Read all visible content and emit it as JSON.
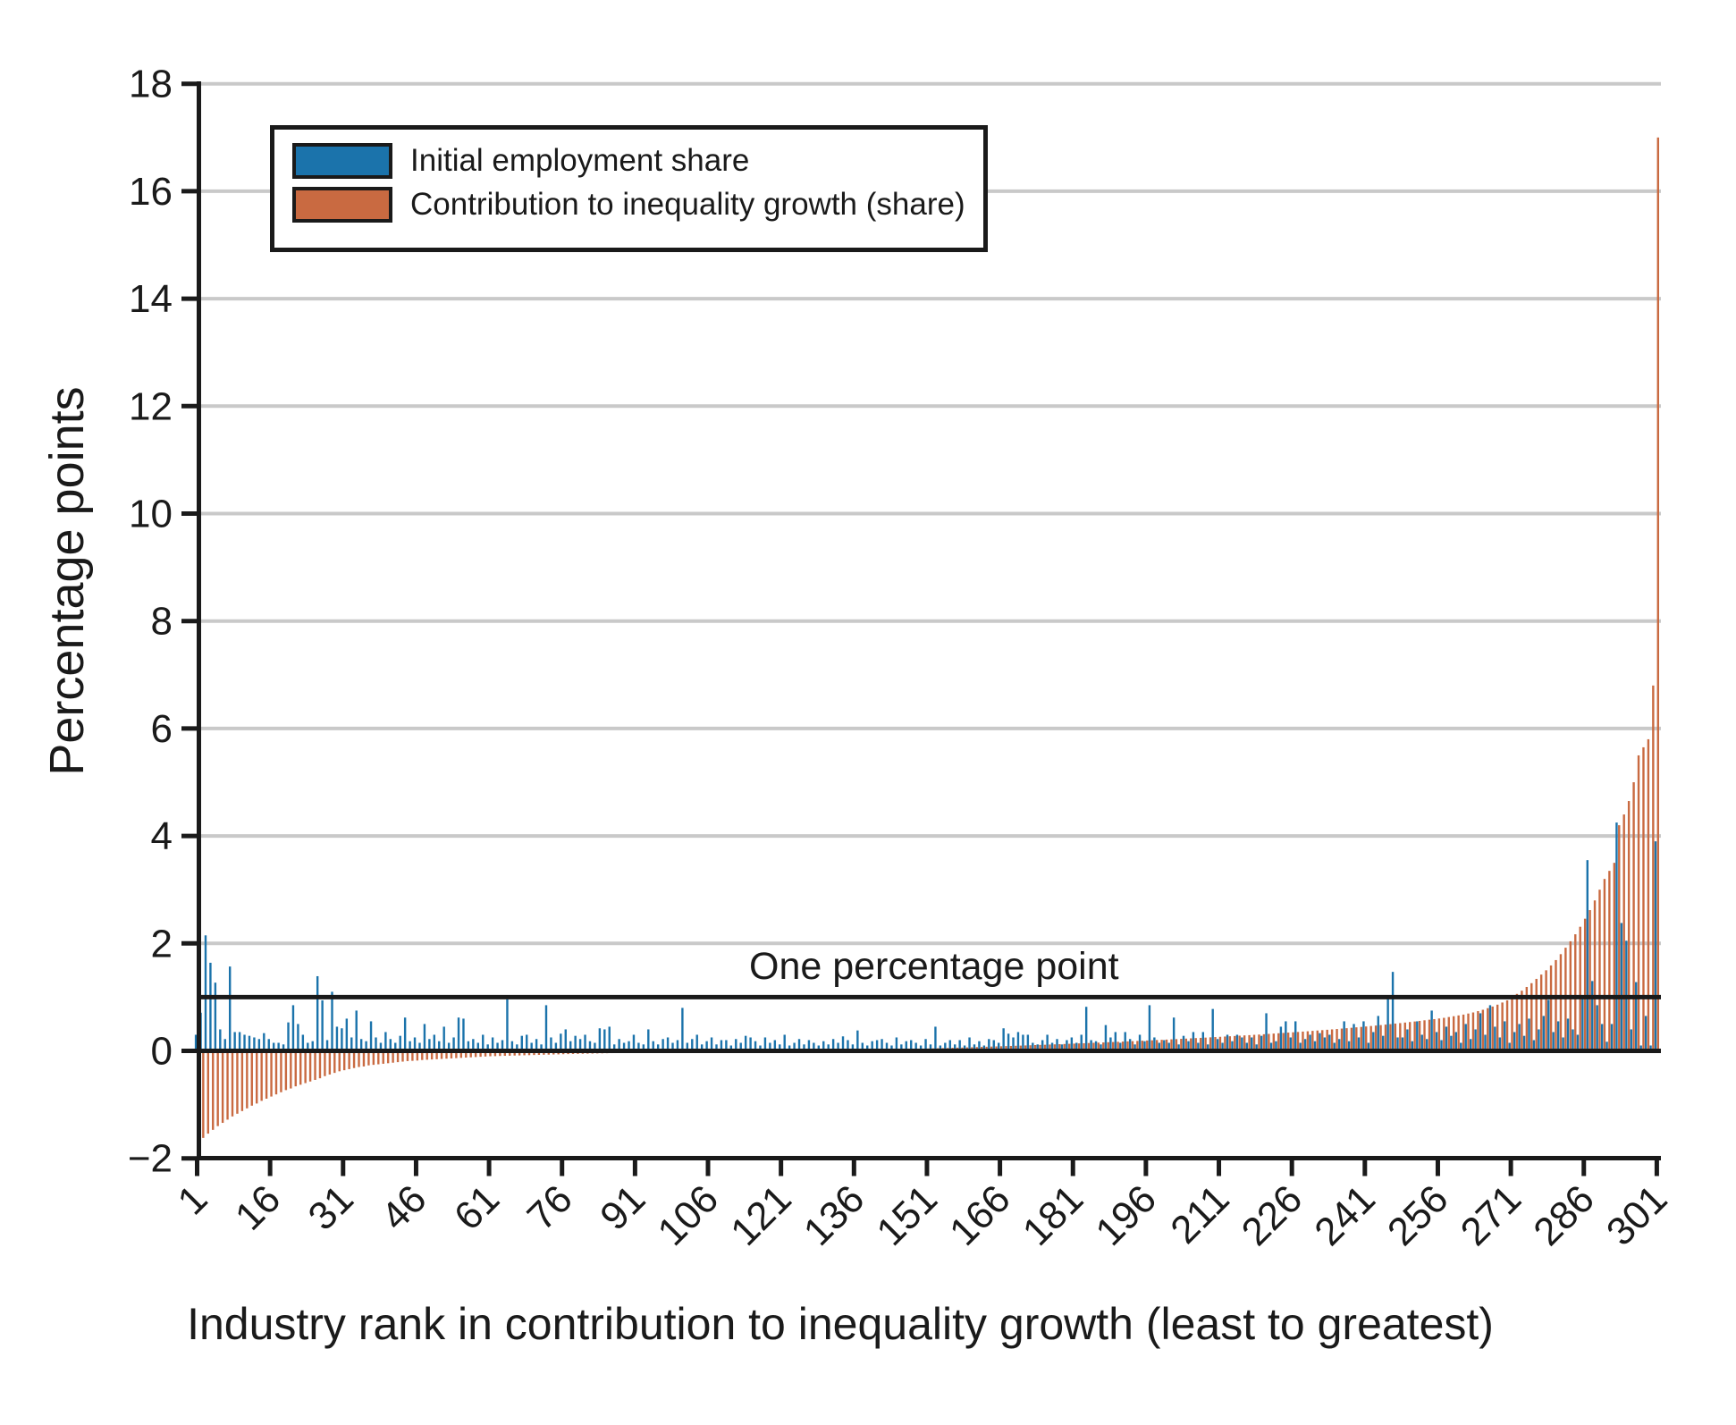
{
  "figure": {
    "ylabel": "Percentage points",
    "xlabel": "Industry rank in contribution to inequality growth (least to greatest)",
    "annotation": "One percentage point",
    "colors": {
      "blue": "#1b73ab",
      "orange": "#c96a41",
      "grid": "#c9c9c9",
      "axis": "#1a1a1a",
      "background": "#ffffff"
    },
    "legend": [
      {
        "label": "Initial employment share",
        "color": "#1b73ab"
      },
      {
        "label": "Contribution to inequality growth (share)",
        "color": "#c96a41"
      }
    ]
  },
  "chart_data": {
    "type": "bar",
    "title": "",
    "xlabel": "Industry rank in contribution to inequality growth (least to greatest)",
    "ylabel": "Percentage points",
    "x_ticks": [
      1,
      16,
      31,
      46,
      61,
      76,
      91,
      106,
      121,
      136,
      151,
      166,
      181,
      196,
      211,
      226,
      241,
      256,
      271,
      286,
      301
    ],
    "y_ticks": [
      -2,
      0,
      2,
      4,
      6,
      8,
      10,
      12,
      14,
      16,
      18
    ],
    "xlim": [
      1,
      301
    ],
    "ylim": [
      -2,
      18
    ],
    "grid": "horizontal gridlines at y = 2,4,6,8,10,12,14,16,18",
    "legend_position": "top-left inside plot",
    "reference_line": {
      "y": 1,
      "label": "One percentage point"
    },
    "x_note": "one pair of bars per industry, ranks 1 to 301 sorted by contribution to inequality growth",
    "series": [
      {
        "name": "Initial employment share",
        "color": "#1b73ab",
        "values": [
          0.3,
          0.71,
          2.15,
          1.64,
          1.27,
          0.4,
          0.22,
          1.57,
          0.35,
          0.35,
          0.3,
          0.28,
          0.25,
          0.22,
          0.33,
          0.22,
          0.15,
          0.15,
          0.12,
          0.53,
          0.85,
          0.5,
          0.3,
          0.15,
          0.18,
          1.39,
          0.94,
          0.2,
          1.1,
          0.45,
          0.42,
          0.6,
          0.25,
          0.75,
          0.22,
          0.18,
          0.55,
          0.25,
          0.15,
          0.35,
          0.22,
          0.15,
          0.28,
          0.62,
          0.18,
          0.25,
          0.15,
          0.5,
          0.22,
          0.3,
          0.18,
          0.45,
          0.15,
          0.25,
          0.62,
          0.6,
          0.18,
          0.22,
          0.15,
          0.3,
          0.12,
          0.25,
          0.15,
          0.2,
          0.96,
          0.18,
          0.12,
          0.28,
          0.3,
          0.15,
          0.22,
          0.12,
          0.85,
          0.25,
          0.15,
          0.32,
          0.4,
          0.18,
          0.28,
          0.22,
          0.3,
          0.18,
          0.15,
          0.42,
          0.4,
          0.45,
          0.12,
          0.22,
          0.15,
          0.18,
          0.3,
          0.15,
          0.12,
          0.4,
          0.18,
          0.12,
          0.22,
          0.25,
          0.15,
          0.2,
          0.8,
          0.15,
          0.22,
          0.3,
          0.12,
          0.18,
          0.25,
          0.12,
          0.2,
          0.2,
          0.1,
          0.22,
          0.15,
          0.28,
          0.25,
          0.18,
          0.1,
          0.25,
          0.15,
          0.2,
          0.12,
          0.3,
          0.1,
          0.15,
          0.22,
          0.12,
          0.2,
          0.15,
          0.1,
          0.18,
          0.12,
          0.22,
          0.15,
          0.27,
          0.2,
          0.12,
          0.38,
          0.15,
          0.1,
          0.18,
          0.2,
          0.22,
          0.15,
          0.1,
          0.25,
          0.12,
          0.18,
          0.2,
          0.15,
          0.1,
          0.22,
          0.12,
          0.45,
          0.1,
          0.15,
          0.2,
          0.12,
          0.2,
          0.1,
          0.25,
          0.12,
          0.18,
          0.1,
          0.22,
          0.2,
          0.15,
          0.42,
          0.32,
          0.25,
          0.35,
          0.3,
          0.3,
          0.15,
          0.12,
          0.2,
          0.3,
          0.15,
          0.22,
          0.12,
          0.2,
          0.25,
          0.15,
          0.3,
          0.82,
          0.2,
          0.18,
          0.12,
          0.48,
          0.25,
          0.35,
          0.15,
          0.35,
          0.22,
          0.12,
          0.3,
          0.18,
          0.85,
          0.25,
          0.15,
          0.2,
          0.15,
          0.62,
          0.12,
          0.28,
          0.18,
          0.35,
          0.15,
          0.35,
          0.12,
          0.78,
          0.22,
          0.15,
          0.3,
          0.18,
          0.3,
          0.25,
          0.15,
          0.25,
          0.12,
          0.28,
          0.7,
          0.15,
          0.18,
          0.45,
          0.55,
          0.25,
          0.55,
          0.15,
          0.22,
          0.3,
          0.18,
          0.33,
          0.25,
          0.3,
          0.15,
          0.22,
          0.55,
          0.18,
          0.5,
          0.25,
          0.55,
          0.15,
          0.35,
          0.65,
          0.28,
          1.0,
          1.47,
          0.25,
          0.25,
          0.4,
          0.18,
          0.55,
          0.3,
          0.22,
          0.75,
          0.35,
          0.2,
          0.45,
          0.28,
          0.35,
          0.15,
          0.5,
          0.22,
          0.4,
          0.7,
          0.3,
          0.85,
          0.45,
          0.25,
          0.55,
          0.15,
          0.35,
          0.5,
          0.28,
          0.6,
          0.2,
          0.4,
          0.65,
          0.95,
          0.35,
          0.55,
          0.25,
          0.6,
          0.4,
          0.3,
          1.0,
          3.55,
          1.3,
          0.85,
          0.5,
          0.17,
          0.5,
          4.25,
          2.38,
          2.05,
          0.4,
          1.28,
          0.1,
          0.65,
          0.1,
          3.9
        ]
      },
      {
        "name": "Contribution to inequality growth (share)",
        "color": "#c96a41",
        "values": [
          -1.7,
          -1.62,
          -1.54,
          -1.47,
          -1.4,
          -1.34,
          -1.28,
          -1.22,
          -1.17,
          -1.12,
          -1.07,
          -1.02,
          -0.98,
          -0.93,
          -0.89,
          -0.85,
          -0.81,
          -0.77,
          -0.73,
          -0.7,
          -0.66,
          -0.63,
          -0.6,
          -0.57,
          -0.54,
          -0.51,
          -0.47,
          -0.44,
          -0.41,
          -0.38,
          -0.36,
          -0.34,
          -0.32,
          -0.3,
          -0.29,
          -0.27,
          -0.26,
          -0.25,
          -0.24,
          -0.23,
          -0.22,
          -0.21,
          -0.2,
          -0.19,
          -0.185,
          -0.18,
          -0.17,
          -0.165,
          -0.16,
          -0.155,
          -0.15,
          -0.145,
          -0.14,
          -0.135,
          -0.13,
          -0.125,
          -0.12,
          -0.115,
          -0.11,
          -0.105,
          -0.1,
          -0.098,
          -0.095,
          -0.092,
          -0.09,
          -0.087,
          -0.085,
          -0.082,
          -0.08,
          -0.077,
          -0.075,
          -0.072,
          -0.07,
          -0.067,
          -0.065,
          -0.062,
          -0.06,
          -0.058,
          -0.056,
          -0.054,
          -0.052,
          -0.05,
          -0.048,
          -0.046,
          -0.044,
          -0.042,
          -0.04,
          -0.038,
          -0.036,
          -0.034,
          -0.032,
          -0.03,
          -0.028,
          -0.026,
          -0.025,
          -0.023,
          -0.022,
          -0.02,
          -0.019,
          -0.018,
          -0.016,
          -0.015,
          -0.014,
          -0.013,
          -0.012,
          -0.011,
          -0.01,
          -0.009,
          -0.008,
          -0.007,
          -0.006,
          -0.005,
          -0.005,
          -0.004,
          -0.003,
          -0.003,
          -0.002,
          -0.002,
          -0.001,
          -0.001,
          0,
          0,
          0.001,
          0.001,
          0.002,
          0.003,
          0.004,
          0.005,
          0.006,
          0.007,
          0.008,
          0.009,
          0.01,
          0.012,
          0.013,
          0.015,
          0.016,
          0.018,
          0.02,
          0.022,
          0.024,
          0.026,
          0.028,
          0.03,
          0.032,
          0.034,
          0.036,
          0.038,
          0.04,
          0.042,
          0.044,
          0.047,
          0.049,
          0.052,
          0.054,
          0.057,
          0.06,
          0.062,
          0.065,
          0.068,
          0.071,
          0.074,
          0.077,
          0.08,
          0.083,
          0.086,
          0.089,
          0.092,
          0.095,
          0.098,
          0.101,
          0.104,
          0.108,
          0.111,
          0.114,
          0.118,
          0.121,
          0.125,
          0.128,
          0.132,
          0.135,
          0.139,
          0.142,
          0.146,
          0.15,
          0.153,
          0.157,
          0.161,
          0.165,
          0.169,
          0.173,
          0.177,
          0.181,
          0.185,
          0.189,
          0.193,
          0.197,
          0.202,
          0.206,
          0.21,
          0.215,
          0.219,
          0.224,
          0.228,
          0.233,
          0.238,
          0.242,
          0.247,
          0.252,
          0.257,
          0.262,
          0.267,
          0.272,
          0.277,
          0.283,
          0.288,
          0.293,
          0.299,
          0.304,
          0.31,
          0.316,
          0.322,
          0.328,
          0.334,
          0.34,
          0.346,
          0.352,
          0.359,
          0.365,
          0.372,
          0.379,
          0.386,
          0.393,
          0.4,
          0.407,
          0.415,
          0.422,
          0.43,
          0.438,
          0.446,
          0.454,
          0.463,
          0.471,
          0.48,
          0.489,
          0.498,
          0.508,
          0.517,
          0.527,
          0.537,
          0.547,
          0.558,
          0.569,
          0.58,
          0.591,
          0.603,
          0.615,
          0.63,
          0.645,
          0.66,
          0.675,
          0.695,
          0.715,
          0.74,
          0.765,
          0.795,
          0.825,
          0.86,
          0.9,
          0.94,
          1.0,
          1.06,
          1.12,
          1.19,
          1.26,
          1.34,
          1.42,
          1.5,
          1.59,
          1.69,
          1.8,
          1.92,
          2.04,
          2.17,
          2.31,
          2.46,
          2.62,
          2.8,
          3.0,
          3.2,
          3.35,
          3.5,
          4.2,
          4.4,
          4.65,
          5.0,
          5.5,
          5.65,
          5.8,
          6.8,
          17.0
        ]
      }
    ]
  }
}
